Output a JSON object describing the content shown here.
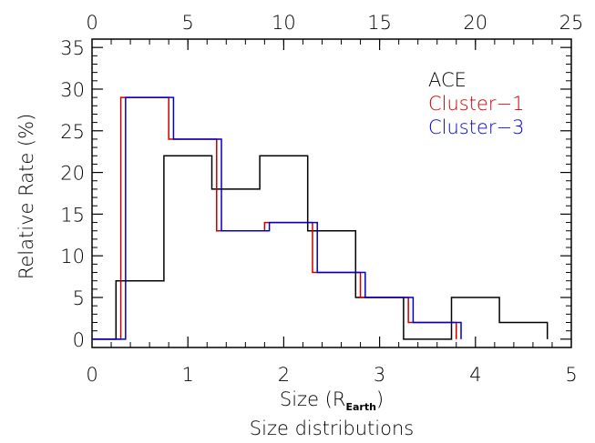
{
  "chart_data": {
    "type": "histogram",
    "title": "Size distributions",
    "xlabel": "Size (R",
    "xlabel_sub": "Earth",
    "xlabel_close": ")",
    "ylabel": "Relative Rate (%)",
    "xlim": [
      0,
      5
    ],
    "ylim": [
      -1,
      36
    ],
    "xticks": [
      "0",
      "1",
      "2",
      "3",
      "4",
      "5"
    ],
    "top_xlim": [
      0,
      25
    ],
    "top_xticks": [
      "5",
      "10",
      "15",
      "20",
      "25"
    ],
    "yticks": [
      "0",
      "5",
      "10",
      "15",
      "20",
      "25",
      "30",
      "35"
    ],
    "grid": false,
    "legend_position": "top-right",
    "series": [
      {
        "name": "ACE",
        "color": "#000000",
        "bin_edges": [
          0.25,
          0.75,
          1.25,
          1.75,
          2.25,
          2.75,
          3.25,
          3.75,
          4.25,
          4.75
        ],
        "values": [
          7,
          22,
          18,
          22,
          13,
          5,
          0,
          5,
          2
        ]
      },
      {
        "name": "Cluster−1",
        "color": "#cc0000",
        "bin_edges": [
          0.3,
          0.8,
          1.3,
          1.8,
          2.3,
          2.8,
          3.3,
          3.8
        ],
        "values": [
          29,
          24,
          13,
          14,
          8,
          5,
          2
        ]
      },
      {
        "name": "Cluster−3",
        "color": "#0000cc",
        "bin_edges": [
          0.35,
          0.85,
          1.35,
          1.85,
          2.35,
          2.85,
          3.35,
          3.85
        ],
        "values": [
          29,
          24,
          13,
          14,
          8,
          5,
          2
        ]
      }
    ]
  }
}
